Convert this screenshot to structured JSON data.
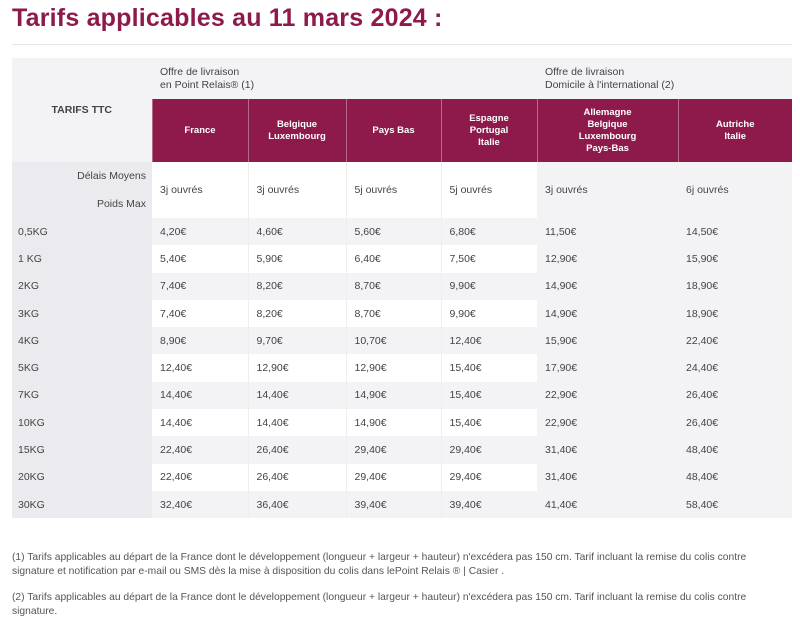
{
  "title": "Tarifs applicables au 11 mars 2024 :",
  "table": {
    "corner_label": "TARIFS TTC",
    "offers": [
      {
        "line1": "Offre de livraison",
        "line2": "en Point Relais® (1)"
      },
      {
        "line1": "Offre de livraison",
        "line2": "Domicile à l'international (2)"
      }
    ],
    "destinations": [
      [
        "France"
      ],
      [
        "Belgique",
        "Luxembourg"
      ],
      [
        "Pays Bas"
      ],
      [
        "Espagne",
        "Portugal",
        "Italie"
      ],
      [
        "Allemagne",
        "Belgique",
        "Luxembourg",
        "Pays-Bas"
      ],
      [
        "Autriche",
        "Italie"
      ]
    ],
    "delais_label": "Délais Moyens",
    "poids_label": "Poids Max",
    "delais": [
      "3j ouvrés",
      "3j ouvrés",
      "5j ouvrés",
      "5j ouvrés",
      "3j ouvrés",
      "6j ouvrés"
    ],
    "rows": [
      {
        "weight": "0,5KG",
        "prices": [
          "4,20€",
          "4,60€",
          "5,60€",
          "6,80€",
          "11,50€",
          "14,50€"
        ]
      },
      {
        "weight": "1 KG",
        "prices": [
          "5,40€",
          "5,90€",
          "6,40€",
          "7,50€",
          "12,90€",
          "15,90€"
        ]
      },
      {
        "weight": "2KG",
        "prices": [
          "7,40€",
          "8,20€",
          "8,70€",
          "9,90€",
          "14,90€",
          "18,90€"
        ]
      },
      {
        "weight": "3KG",
        "prices": [
          "7,40€",
          "8,20€",
          "8,70€",
          "9,90€",
          "14,90€",
          "18,90€"
        ]
      },
      {
        "weight": "4KG",
        "prices": [
          "8,90€",
          "9,70€",
          "10,70€",
          "12,40€",
          "15,90€",
          "22,40€"
        ]
      },
      {
        "weight": "5KG",
        "prices": [
          "12,40€",
          "12,90€",
          "12,90€",
          "15,40€",
          "17,90€",
          "24,40€"
        ]
      },
      {
        "weight": "7KG",
        "prices": [
          "14,40€",
          "14,40€",
          "14,90€",
          "15,40€",
          "22,90€",
          "26,40€"
        ]
      },
      {
        "weight": "10KG",
        "prices": [
          "14,40€",
          "14,40€",
          "14,90€",
          "15,40€",
          "22,90€",
          "26,40€"
        ]
      },
      {
        "weight": "15KG",
        "prices": [
          "22,40€",
          "26,40€",
          "29,40€",
          "29,40€",
          "31,40€",
          "48,40€"
        ]
      },
      {
        "weight": "20KG",
        "prices": [
          "22,40€",
          "26,40€",
          "29,40€",
          "29,40€",
          "31,40€",
          "48,40€"
        ]
      },
      {
        "weight": "30KG",
        "prices": [
          "32,40€",
          "36,40€",
          "39,40€",
          "39,40€",
          "41,40€",
          "58,40€"
        ]
      }
    ]
  },
  "notes": {
    "note1": "(1) Tarifs applicables au départ de la France dont le développement (longueur + largeur + hauteur) n'excédera pas 150 cm. Tarif incluant la remise du colis contre signature et notification par e-mail ou SMS dès la mise à disposition du colis dans lePoint Relais ® | Casier .",
    "note2": "(2) Tarifs applicables au départ de la France dont le développement (longueur + largeur + hauteur) n'excédera pas 150 cm. Tarif incluant la remise du colis contre signature."
  },
  "colors": {
    "brand": "#8e1a4c"
  }
}
